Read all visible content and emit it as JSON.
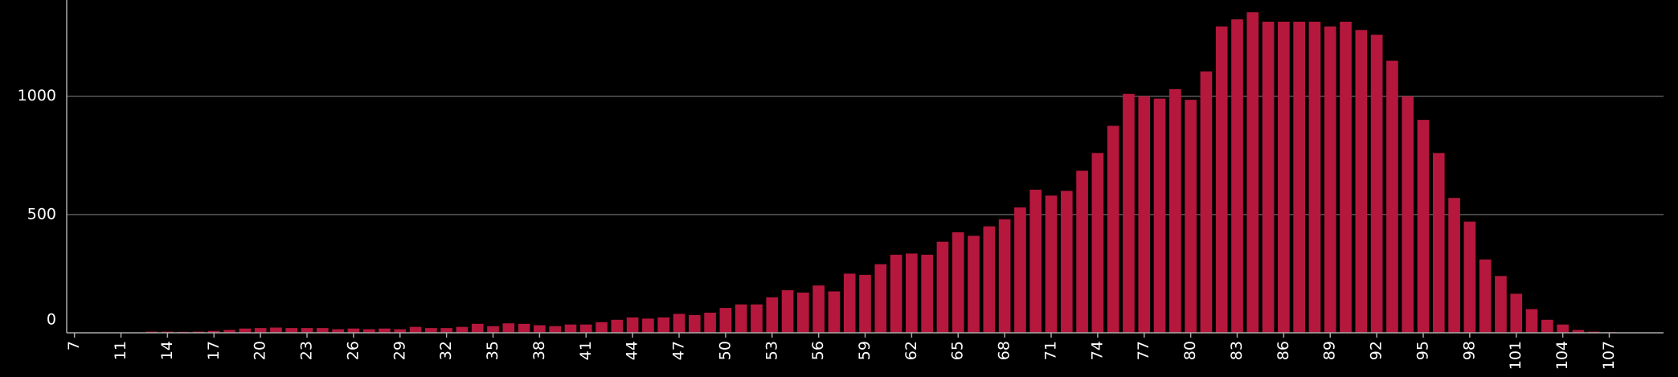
{
  "chart_data": {
    "type": "bar",
    "color": "#b5183c",
    "categories": [
      "7",
      null,
      null,
      "11",
      null,
      null,
      "14",
      null,
      null,
      "17",
      null,
      null,
      "20",
      null,
      null,
      "23",
      null,
      null,
      "26",
      null,
      null,
      "29",
      null,
      null,
      "32",
      null,
      null,
      "35",
      null,
      null,
      "38",
      null,
      null,
      "41",
      null,
      null,
      "44",
      null,
      null,
      "47",
      null,
      null,
      "50",
      null,
      null,
      "53",
      null,
      null,
      "56",
      null,
      null,
      "59",
      null,
      null,
      "62",
      null,
      null,
      "65",
      null,
      null,
      "68",
      null,
      null,
      "71",
      null,
      null,
      "74",
      null,
      null,
      "77",
      null,
      null,
      "80",
      null,
      null,
      "83",
      null,
      null,
      "86",
      null,
      null,
      "89",
      null,
      null,
      "92",
      null,
      null,
      "95",
      null,
      null,
      "98",
      null,
      null,
      "101",
      null,
      null,
      "104",
      null,
      null,
      "107",
      null,
      null,
      null
    ],
    "values": [
      0,
      0,
      0,
      0,
      2,
      5,
      5,
      4,
      5,
      8,
      12,
      18,
      20,
      22,
      20,
      20,
      20,
      15,
      18,
      15,
      18,
      15,
      25,
      20,
      20,
      25,
      38,
      28,
      40,
      38,
      32,
      28,
      35,
      35,
      45,
      55,
      65,
      60,
      65,
      80,
      75,
      85,
      105,
      120,
      120,
      150,
      180,
      170,
      200,
      175,
      250,
      245,
      290,
      330,
      335,
      330,
      385,
      425,
      410,
      450,
      480,
      530,
      605,
      580,
      600,
      685,
      760,
      875,
      1010,
      1000,
      990,
      1030,
      985,
      1105,
      1295,
      1325,
      1355,
      1315,
      1315,
      1315,
      1315,
      1295,
      1315,
      1280,
      1260,
      1150,
      1000,
      900,
      760,
      570,
      470,
      310,
      240,
      165,
      100,
      55,
      35,
      12,
      5,
      3,
      2,
      0,
      0
    ],
    "ylim": [
      0,
      1400
    ],
    "yticks": [
      0,
      500,
      1000
    ],
    "grid": true
  }
}
